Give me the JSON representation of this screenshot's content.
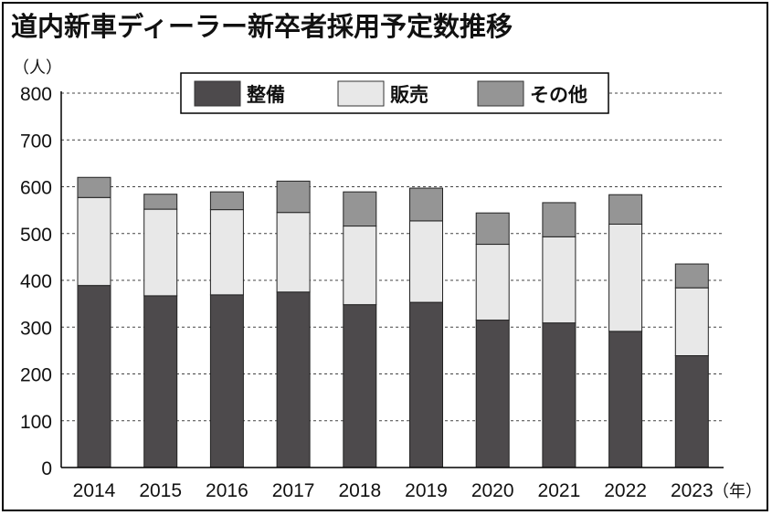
{
  "title": "道内新車ディーラー新卒者採用予定数推移",
  "y_unit": "（人）",
  "x_unit": "（年）",
  "colors": {
    "maintenance": "#4d4a4c",
    "sales": "#e8e8e8",
    "other": "#959595"
  },
  "chart_data": {
    "type": "bar",
    "stacked": true,
    "categories": [
      "2014",
      "2015",
      "2016",
      "2017",
      "2018",
      "2019",
      "2020",
      "2021",
      "2022",
      "2023"
    ],
    "series": [
      {
        "name": "整備",
        "values": [
          389,
          367,
          369,
          375,
          348,
          353,
          315,
          309,
          291,
          239
        ]
      },
      {
        "name": "販売",
        "values": [
          188,
          185,
          182,
          170,
          168,
          174,
          162,
          184,
          229,
          145
        ]
      },
      {
        "name": "その他",
        "values": [
          43,
          32,
          38,
          67,
          73,
          70,
          67,
          73,
          63,
          51
        ]
      }
    ],
    "ylim": [
      0,
      800
    ],
    "yticks": [
      0,
      100,
      200,
      300,
      400,
      500,
      600,
      700,
      800
    ],
    "grid": true,
    "legend_position": "top"
  }
}
